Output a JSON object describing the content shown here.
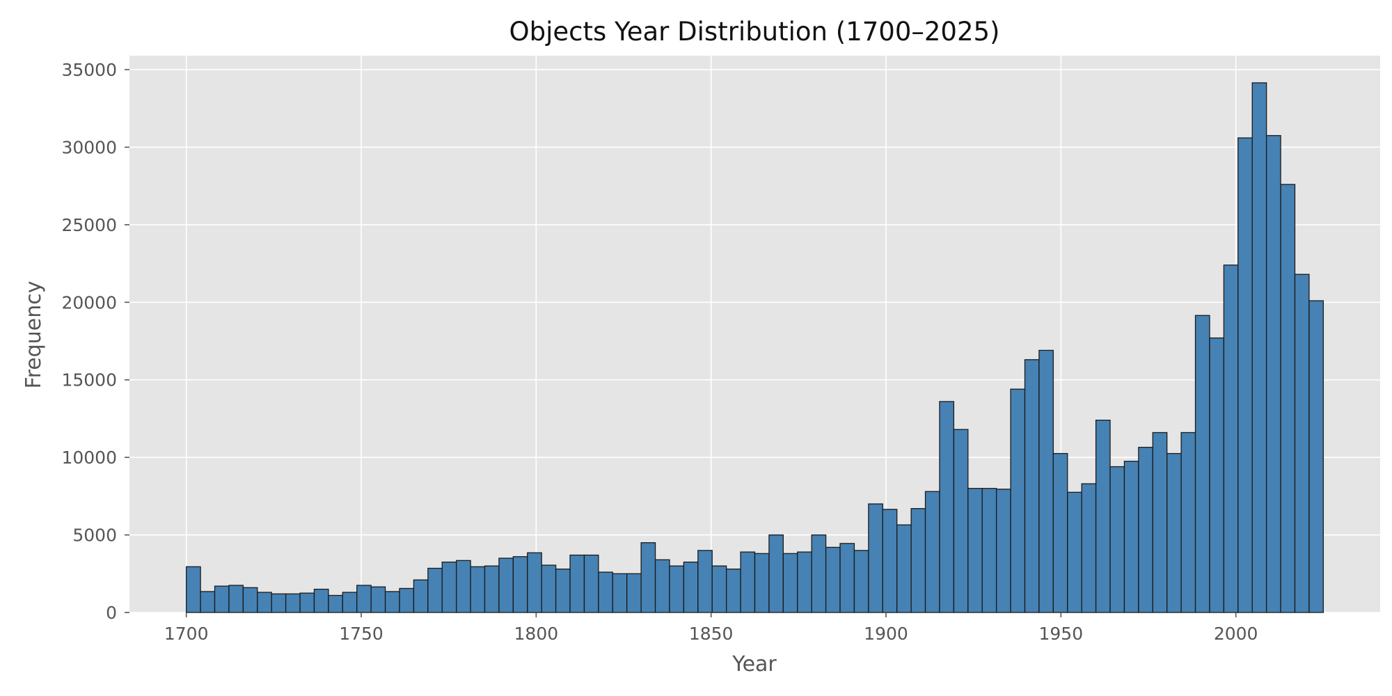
{
  "chart_data": {
    "type": "bar",
    "title": "Objects Year Distribution (1700–2025)",
    "xlabel": "Year",
    "ylabel": "Frequency",
    "xlim": [
      1683.75,
      2041.25
    ],
    "ylim": [
      0,
      35900
    ],
    "xticks": [
      1700,
      1750,
      1800,
      1850,
      1900,
      1950,
      2000
    ],
    "yticks": [
      0,
      5000,
      10000,
      15000,
      20000,
      25000,
      30000,
      35000
    ],
    "grid": true,
    "bin_start": 1700,
    "bin_width": 4.0625,
    "colors": {
      "bar_fill": "#4682b4",
      "bar_edge": "#1a1a1a",
      "plot_bg": "#e5e5e5",
      "grid": "#ffffff"
    },
    "values": [
      2950,
      1350,
      1700,
      1750,
      1600,
      1300,
      1200,
      1200,
      1250,
      1500,
      1100,
      1300,
      1750,
      1650,
      1350,
      1550,
      2100,
      2850,
      3250,
      3350,
      2950,
      3000,
      3500,
      3600,
      3850,
      3050,
      2800,
      3700,
      3700,
      2600,
      2500,
      2500,
      4500,
      3400,
      3000,
      3250,
      4000,
      3000,
      2800,
      3900,
      3800,
      5000,
      3800,
      3900,
      5000,
      4200,
      4450,
      4000,
      7000,
      6650,
      5650,
      6700,
      7800,
      13600,
      11800,
      8000,
      8000,
      7950,
      14400,
      16300,
      16900,
      10250,
      7750,
      8300,
      12400,
      9400,
      9750,
      10650,
      11600,
      10250,
      11600,
      19150,
      17700,
      22400,
      30600,
      34150,
      30750,
      27600,
      21800,
      20100
    ]
  }
}
